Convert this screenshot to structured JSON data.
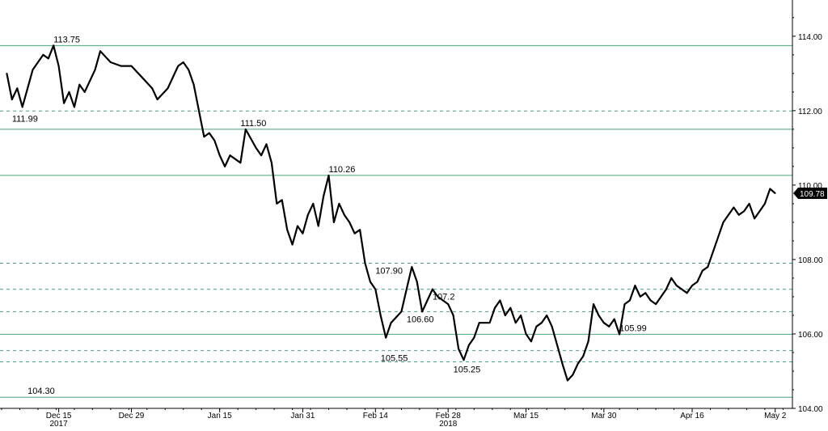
{
  "chart_data": {
    "type": "line",
    "title": "",
    "xlabel": "",
    "ylabel": "",
    "ylim": [
      104.0,
      114.8
    ],
    "y_ticks": [
      "104.00",
      "106.00",
      "108.00",
      "110.00",
      "112.00",
      "114.00"
    ],
    "x_ticks": [
      {
        "label": "Dec 15",
        "x": "2017-12-15"
      },
      {
        "label": "Dec 29",
        "x": "2017-12-29"
      },
      {
        "label": "Jan 15",
        "x": "2018-01-15"
      },
      {
        "label": "Jan 31",
        "x": "2018-01-31"
      },
      {
        "label": "Feb 14",
        "x": "2018-02-14"
      },
      {
        "label": "Feb 28",
        "x": "2018-02-28"
      },
      {
        "label": "Mar 15",
        "x": "2018-03-15"
      },
      {
        "label": "Mar 30",
        "x": "2018-03-30"
      },
      {
        "label": "Apr 16",
        "x": "2018-04-16"
      },
      {
        "label": "May 2",
        "x": "2018-05-02"
      }
    ],
    "year_labels": [
      {
        "label": "2017",
        "x": "2017-12-15"
      },
      {
        "label": "2018",
        "x": "2018-02-28"
      }
    ],
    "last_value_label": "109.78",
    "line_color": "#000000",
    "series": [
      {
        "values": [
          [
            "2017-12-05",
            113.0
          ],
          [
            "2017-12-06",
            112.3
          ],
          [
            "2017-12-07",
            112.6
          ],
          [
            "2017-12-08",
            112.1
          ],
          [
            "2017-12-10",
            113.1
          ],
          [
            "2017-12-12",
            113.5
          ],
          [
            "2017-12-13",
            113.4
          ],
          [
            "2017-12-14",
            113.75
          ],
          [
            "2017-12-15",
            113.2
          ],
          [
            "2017-12-16",
            112.2
          ],
          [
            "2017-12-17",
            112.5
          ],
          [
            "2017-12-18",
            112.1
          ],
          [
            "2017-12-19",
            112.7
          ],
          [
            "2017-12-20",
            112.5
          ],
          [
            "2017-12-22",
            113.1
          ],
          [
            "2017-12-23",
            113.6
          ],
          [
            "2017-12-25",
            113.3
          ],
          [
            "2017-12-27",
            113.2
          ],
          [
            "2017-12-29",
            113.2
          ],
          [
            "2017-12-31",
            112.9
          ],
          [
            "2018-01-02",
            112.6
          ],
          [
            "2018-01-03",
            112.3
          ],
          [
            "2018-01-05",
            112.6
          ],
          [
            "2018-01-06",
            112.9
          ],
          [
            "2018-01-07",
            113.2
          ],
          [
            "2018-01-08",
            113.3
          ],
          [
            "2018-01-09",
            113.1
          ],
          [
            "2018-01-10",
            112.7
          ],
          [
            "2018-01-11",
            112.0
          ],
          [
            "2018-01-12",
            111.3
          ],
          [
            "2018-01-13",
            111.4
          ],
          [
            "2018-01-14",
            111.2
          ],
          [
            "2018-01-15",
            110.8
          ],
          [
            "2018-01-16",
            110.5
          ],
          [
            "2018-01-17",
            110.8
          ],
          [
            "2018-01-18",
            110.7
          ],
          [
            "2018-01-19",
            110.6
          ],
          [
            "2018-01-20",
            111.5
          ],
          [
            "2018-01-22",
            111.0
          ],
          [
            "2018-01-23",
            110.8
          ],
          [
            "2018-01-24",
            111.1
          ],
          [
            "2018-01-25",
            110.6
          ],
          [
            "2018-01-26",
            109.5
          ],
          [
            "2018-01-27",
            109.6
          ],
          [
            "2018-01-28",
            108.8
          ],
          [
            "2018-01-29",
            108.4
          ],
          [
            "2018-01-30",
            108.9
          ],
          [
            "2018-01-31",
            108.7
          ],
          [
            "2018-02-01",
            109.2
          ],
          [
            "2018-02-02",
            109.5
          ],
          [
            "2018-02-03",
            108.9
          ],
          [
            "2018-02-04",
            109.7
          ],
          [
            "2018-02-05",
            110.26
          ],
          [
            "2018-02-06",
            109.0
          ],
          [
            "2018-02-07",
            109.5
          ],
          [
            "2018-02-08",
            109.2
          ],
          [
            "2018-02-09",
            109.0
          ],
          [
            "2018-02-10",
            108.7
          ],
          [
            "2018-02-11",
            108.8
          ],
          [
            "2018-02-12",
            107.9
          ],
          [
            "2018-02-13",
            107.4
          ],
          [
            "2018-02-14",
            107.2
          ],
          [
            "2018-02-15",
            106.5
          ],
          [
            "2018-02-16",
            105.9
          ],
          [
            "2018-02-17",
            106.3
          ],
          [
            "2018-02-19",
            106.6
          ],
          [
            "2018-02-20",
            107.2
          ],
          [
            "2018-02-21",
            107.8
          ],
          [
            "2018-02-22",
            107.4
          ],
          [
            "2018-02-23",
            106.6
          ],
          [
            "2018-02-24",
            106.9
          ],
          [
            "2018-02-25",
            107.2
          ],
          [
            "2018-02-26",
            107.0
          ],
          [
            "2018-02-28",
            106.8
          ],
          [
            "2018-03-01",
            106.5
          ],
          [
            "2018-03-02",
            105.6
          ],
          [
            "2018-03-03",
            105.3
          ],
          [
            "2018-03-04",
            105.7
          ],
          [
            "2018-03-05",
            105.9
          ],
          [
            "2018-03-06",
            106.3
          ],
          [
            "2018-03-08",
            106.3
          ],
          [
            "2018-03-09",
            106.7
          ],
          [
            "2018-03-10",
            106.9
          ],
          [
            "2018-03-11",
            106.5
          ],
          [
            "2018-03-12",
            106.7
          ],
          [
            "2018-03-13",
            106.3
          ],
          [
            "2018-03-14",
            106.5
          ],
          [
            "2018-03-15",
            106.0
          ],
          [
            "2018-03-16",
            105.8
          ],
          [
            "2018-03-17",
            106.2
          ],
          [
            "2018-03-18",
            106.3
          ],
          [
            "2018-03-19",
            106.5
          ],
          [
            "2018-03-20",
            106.2
          ],
          [
            "2018-03-21",
            105.7
          ],
          [
            "2018-03-22",
            105.2
          ],
          [
            "2018-03-23",
            104.75
          ],
          [
            "2018-03-24",
            104.9
          ],
          [
            "2018-03-25",
            105.2
          ],
          [
            "2018-03-26",
            105.4
          ],
          [
            "2018-03-27",
            105.8
          ],
          [
            "2018-03-28",
            106.8
          ],
          [
            "2018-03-29",
            106.5
          ],
          [
            "2018-03-30",
            106.3
          ],
          [
            "2018-03-31",
            106.2
          ],
          [
            "2018-04-01",
            106.4
          ],
          [
            "2018-04-02",
            105.99
          ],
          [
            "2018-04-03",
            106.8
          ],
          [
            "2018-04-04",
            106.9
          ],
          [
            "2018-04-05",
            107.3
          ],
          [
            "2018-04-06",
            107.0
          ],
          [
            "2018-04-07",
            107.1
          ],
          [
            "2018-04-08",
            106.9
          ],
          [
            "2018-04-09",
            106.8
          ],
          [
            "2018-04-11",
            107.2
          ],
          [
            "2018-04-12",
            107.5
          ],
          [
            "2018-04-13",
            107.3
          ],
          [
            "2018-04-15",
            107.1
          ],
          [
            "2018-04-16",
            107.3
          ],
          [
            "2018-04-17",
            107.4
          ],
          [
            "2018-04-18",
            107.7
          ],
          [
            "2018-04-19",
            107.8
          ],
          [
            "2018-04-20",
            108.2
          ],
          [
            "2018-04-21",
            108.6
          ],
          [
            "2018-04-22",
            109.0
          ],
          [
            "2018-04-23",
            109.2
          ],
          [
            "2018-04-24",
            109.4
          ],
          [
            "2018-04-25",
            109.2
          ],
          [
            "2018-04-26",
            109.3
          ],
          [
            "2018-04-27",
            109.5
          ],
          [
            "2018-04-28",
            109.1
          ],
          [
            "2018-04-29",
            109.3
          ],
          [
            "2018-04-30",
            109.5
          ],
          [
            "2018-05-01",
            109.9
          ],
          [
            "2018-05-02",
            109.78
          ]
        ]
      }
    ],
    "reference_lines": [
      {
        "value": 113.75,
        "label": "113.75",
        "style": "solid",
        "label_x": "2017-12-14"
      },
      {
        "value": 111.99,
        "label": "111.99",
        "style": "dashed",
        "label_x": "2017-12-06"
      },
      {
        "value": 111.5,
        "label": "111.50",
        "style": "solid",
        "label_x": "2018-01-19"
      },
      {
        "value": 110.26,
        "label": "110.26",
        "style": "solid",
        "label_x": "2018-02-05"
      },
      {
        "value": 107.9,
        "label": "107.90",
        "style": "dashed",
        "label_x": "2018-02-14"
      },
      {
        "value": 107.2,
        "label": "107.2",
        "style": "dashed",
        "label_x": "2018-02-25"
      },
      {
        "value": 106.6,
        "label": "106.60",
        "style": "dashed",
        "label_x": "2018-02-20"
      },
      {
        "value": 105.99,
        "label": "105.99",
        "style": "solid",
        "label_x": "2018-04-02"
      },
      {
        "value": 105.55,
        "label": "105.55",
        "style": "dashed",
        "label_x": "2018-02-15"
      },
      {
        "value": 105.25,
        "label": "105.25",
        "style": "dashed",
        "label_x": "2018-03-01"
      },
      {
        "value": 104.3,
        "label": "104.30",
        "style": "solid",
        "label_x": "2017-12-09"
      }
    ],
    "colors": {
      "reference_line": "#4aa37a",
      "axis": "#000000",
      "last_value_bg": "#000000",
      "last_value_text": "#ffffff"
    },
    "grid": false,
    "legend": "none"
  }
}
